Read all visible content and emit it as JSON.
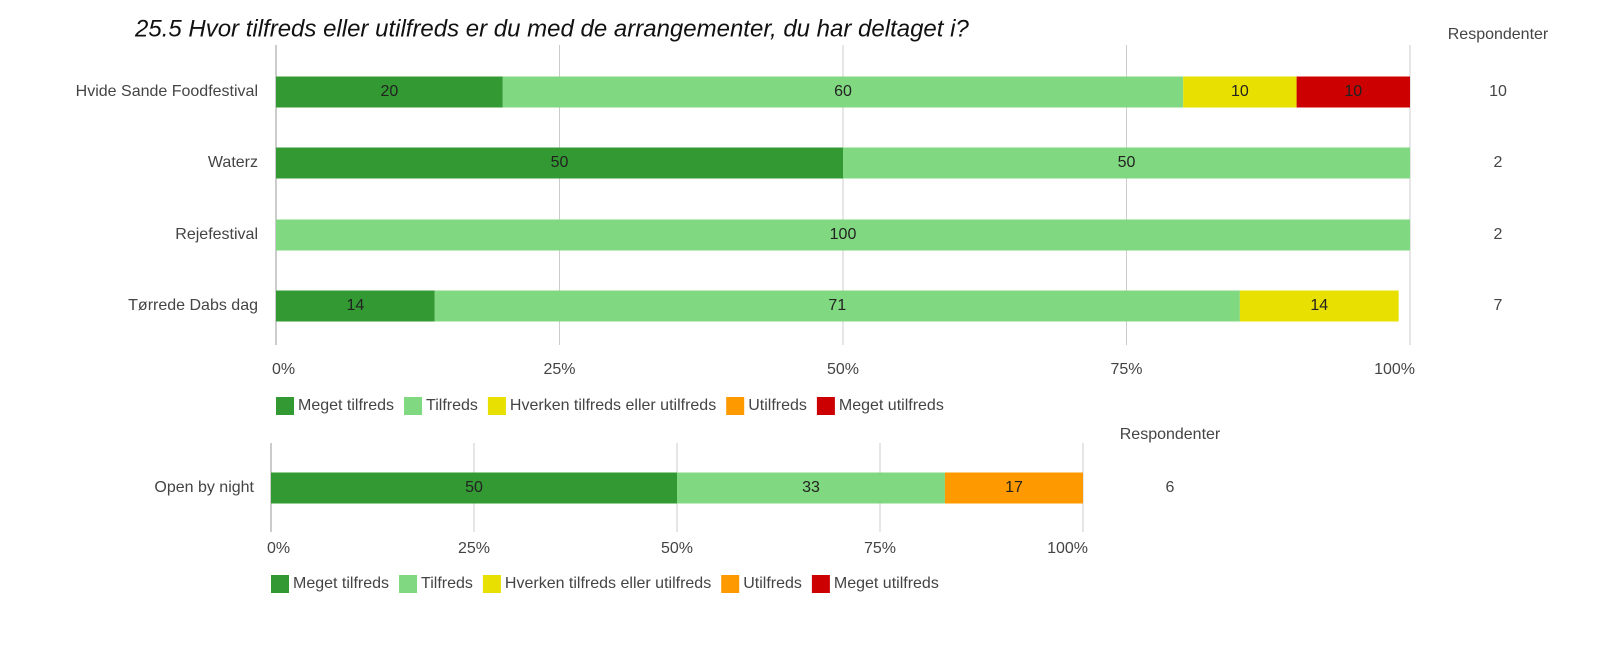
{
  "chart_data": [
    {
      "type": "bar",
      "orientation": "horizontal",
      "stacked": true,
      "title": "25.5 Hvor tilfreds eller utilfreds er du med de arrangementer, du har deltaget i?",
      "categories": [
        "Hvide Sande Foodfestival",
        "Waterz",
        "Rejefestival",
        "Tørrede Dabs dag"
      ],
      "series": [
        {
          "name": "Meget tilfreds",
          "color": "#339933",
          "values": [
            20,
            50,
            0,
            14
          ]
        },
        {
          "name": "Tilfreds",
          "color": "#80d880",
          "values": [
            60,
            50,
            100,
            71
          ]
        },
        {
          "name": "Hverken tilfreds eller utilfreds",
          "color": "#e8e000",
          "values": [
            10,
            0,
            0,
            14
          ]
        },
        {
          "name": "Utilfreds",
          "color": "#ff9900",
          "values": [
            0,
            0,
            0,
            0
          ]
        },
        {
          "name": "Meget utilfreds",
          "color": "#cc0000",
          "values": [
            10,
            0,
            0,
            0
          ]
        }
      ],
      "xlim": [
        0,
        100
      ],
      "xticks": [
        {
          "value": 0,
          "label": "0%"
        },
        {
          "value": 25,
          "label": "25%"
        },
        {
          "value": 50,
          "label": "50%"
        },
        {
          "value": 75,
          "label": "75%"
        },
        {
          "value": 100,
          "label": "100%"
        }
      ],
      "grid": true,
      "legend": "bottom",
      "respondents_label": "Respondenter",
      "respondents": [
        10,
        2,
        2,
        7
      ]
    },
    {
      "type": "bar",
      "orientation": "horizontal",
      "stacked": true,
      "categories": [
        "Open by night"
      ],
      "series": [
        {
          "name": "Meget tilfreds",
          "color": "#339933",
          "values": [
            50
          ]
        },
        {
          "name": "Tilfreds",
          "color": "#80d880",
          "values": [
            33
          ]
        },
        {
          "name": "Hverken tilfreds eller utilfreds",
          "color": "#e8e000",
          "values": [
            0
          ]
        },
        {
          "name": "Utilfreds",
          "color": "#ff9900",
          "values": [
            17
          ]
        },
        {
          "name": "Meget utilfreds",
          "color": "#cc0000",
          "values": [
            0
          ]
        }
      ],
      "xlim": [
        0,
        100
      ],
      "xticks": [
        {
          "value": 0,
          "label": "0%"
        },
        {
          "value": 25,
          "label": "25%"
        },
        {
          "value": 50,
          "label": "50%"
        },
        {
          "value": 75,
          "label": "75%"
        },
        {
          "value": 100,
          "label": "100%"
        }
      ],
      "grid": true,
      "legend": "bottom",
      "respondents_label": "Respondenter",
      "respondents": [
        6
      ]
    }
  ]
}
